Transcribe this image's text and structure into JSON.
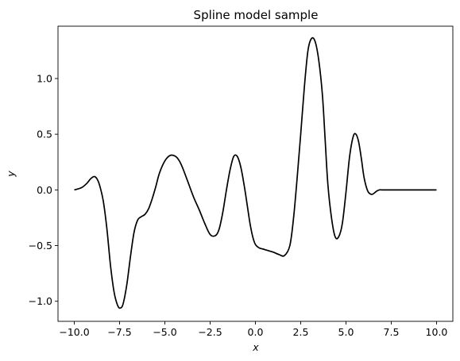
{
  "chart_data": {
    "type": "line",
    "title": "Spline model sample",
    "xlabel": "x",
    "ylabel": "y",
    "xlim": [
      -10.9,
      10.9
    ],
    "ylim": [
      -1.18,
      1.47
    ],
    "grid": false,
    "legend": "none",
    "x_ticks": [
      -10.0,
      -7.5,
      -5.0,
      -2.5,
      0.0,
      2.5,
      5.0,
      7.5,
      10.0
    ],
    "x_tick_labels": [
      "−10.0",
      "−7.5",
      "−5.0",
      "−2.5",
      "0.0",
      "2.5",
      "5.0",
      "7.5",
      "10.0"
    ],
    "y_ticks": [
      -1.0,
      -0.5,
      0.0,
      0.5,
      1.0
    ],
    "y_tick_labels": [
      "−1.0",
      "−0.5",
      "0.0",
      "0.5",
      "1.0"
    ],
    "series": [
      {
        "color": "#000000",
        "x": [
          -10.0,
          -9.6,
          -9.3,
          -9.1,
          -8.9,
          -8.75,
          -8.6,
          -8.4,
          -8.2,
          -8.0,
          -7.8,
          -7.6,
          -7.45,
          -7.3,
          -7.1,
          -6.9,
          -6.7,
          -6.5,
          -6.3,
          -6.1,
          -5.9,
          -5.7,
          -5.5,
          -5.3,
          -5.0,
          -4.7,
          -4.4,
          -4.2,
          -4.0,
          -3.7,
          -3.4,
          -3.1,
          -2.8,
          -2.5,
          -2.2,
          -2.0,
          -1.8,
          -1.6,
          -1.4,
          -1.2,
          -1.0,
          -0.8,
          -0.6,
          -0.45,
          -0.3,
          -0.15,
          0.0,
          0.2,
          0.4,
          0.6,
          0.8,
          1.0,
          1.3,
          1.6,
          1.9,
          2.1,
          2.3,
          2.5,
          2.7,
          2.9,
          3.1,
          3.3,
          3.5,
          3.7,
          3.85,
          4.0,
          4.2,
          4.4,
          4.6,
          4.8,
          5.0,
          5.2,
          5.4,
          5.55,
          5.7,
          5.85,
          6.0,
          6.2,
          6.4,
          6.55,
          6.7,
          6.85,
          7.0,
          7.2,
          7.4,
          7.6,
          7.8,
          8.0,
          8.2,
          8.5,
          8.8,
          9.2,
          9.6,
          10.0
        ],
        "values": [
          0.0,
          0.02,
          0.06,
          0.1,
          0.12,
          0.1,
          0.04,
          -0.1,
          -0.35,
          -0.68,
          -0.92,
          -1.04,
          -1.06,
          -1.02,
          -0.85,
          -0.6,
          -0.38,
          -0.27,
          -0.24,
          -0.22,
          -0.17,
          -0.08,
          0.03,
          0.15,
          0.26,
          0.31,
          0.3,
          0.26,
          0.19,
          0.06,
          -0.07,
          -0.18,
          -0.3,
          -0.4,
          -0.41,
          -0.35,
          -0.2,
          0.0,
          0.18,
          0.3,
          0.3,
          0.2,
          0.02,
          -0.14,
          -0.3,
          -0.42,
          -0.49,
          -0.52,
          -0.53,
          -0.54,
          -0.55,
          -0.56,
          -0.58,
          -0.59,
          -0.5,
          -0.26,
          0.1,
          0.5,
          0.92,
          1.25,
          1.36,
          1.33,
          1.16,
          0.85,
          0.45,
          0.05,
          -0.25,
          -0.42,
          -0.42,
          -0.3,
          -0.02,
          0.3,
          0.48,
          0.5,
          0.43,
          0.28,
          0.11,
          -0.01,
          -0.04,
          -0.03,
          -0.01,
          0.0,
          0.0,
          0.0,
          0.0,
          0.0,
          0.0,
          0.0,
          0.0,
          0.0,
          0.0,
          0.0,
          0.0,
          0.0
        ]
      }
    ]
  }
}
